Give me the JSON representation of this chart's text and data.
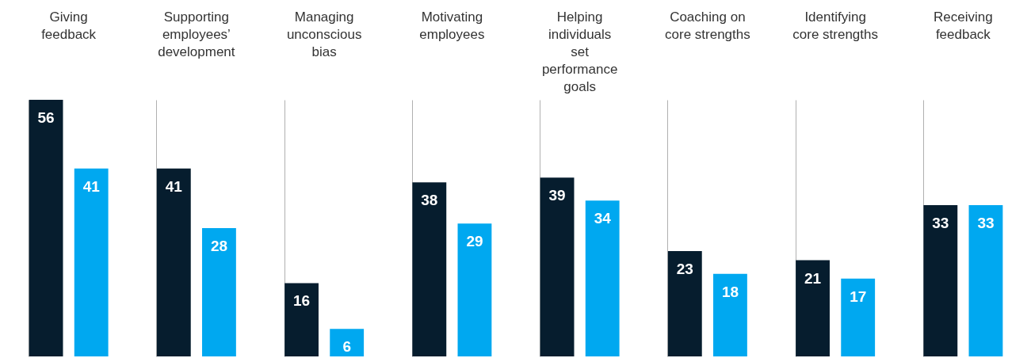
{
  "chart_data": {
    "type": "bar",
    "categories": [
      "Giving feedback",
      "Supporting employees’ development",
      "Managing unconscious bias",
      "Motivating employees",
      "Helping individuals set performance goals",
      "Coaching on core strengths",
      "Identifying core strengths",
      "Receiving feedback"
    ],
    "series": [
      {
        "color": "#061d2e",
        "values": [
          56,
          41,
          16,
          38,
          39,
          23,
          21,
          33
        ]
      },
      {
        "color": "#00a8f0",
        "values": [
          41,
          28,
          6,
          29,
          34,
          18,
          17,
          33
        ]
      }
    ],
    "data_labels": true,
    "grid": "x"
  }
}
